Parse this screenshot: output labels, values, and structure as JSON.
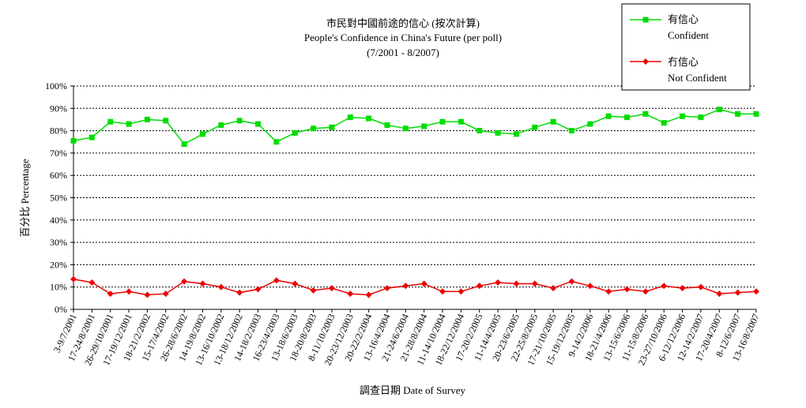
{
  "chart_data": {
    "type": "line",
    "title": "市民對中國前途的信心 (按次計算)",
    "subtitle": "People's Confidence in China's Future (per poll)",
    "subtitle2": "(7/2001 - 8/2007)",
    "xlabel": "調查日期 Date of Survey",
    "ylabel": "百分比 Percentage",
    "ylim": [
      0,
      100
    ],
    "yticks": [
      "0%",
      "10%",
      "20%",
      "30%",
      "40%",
      "50%",
      "60%",
      "70%",
      "80%",
      "90%",
      "100%"
    ],
    "grid": true,
    "legend_position": "top-right",
    "categories": [
      "3-9/7/2001",
      "17-24/8/2001",
      "26-29/10/2001",
      "17-19/12/2001",
      "18-21/2/2002",
      "15-17/4/2002",
      "26-28/6/2002",
      "14-19/8/2002",
      "13-16/10/2002",
      "13-18/12/2002",
      "14-18/2/2003",
      "16-23/4/2003",
      "13-18/6/2003",
      "18-20/8/2003",
      "8-11/10/2003",
      "20-23/12/2003",
      "20-22/2/2004",
      "13-16/4/2004",
      "21-24/6/2004",
      "21-28/8/2004",
      "11-14/10/2004",
      "18-22/12/2004",
      "17-20/2/2005",
      "11-14/4/2005",
      "20-23/6/2005",
      "22-25/8/2005",
      "17-21/10/2005",
      "15-19/12/2005",
      "9-14/2/2006",
      "18-21/4/2006",
      "13-15/6/2006",
      "11-15/8/2006",
      "23-27/10/2006",
      "6-12/12/2006",
      "12-14/2/2007",
      "17-20/4/2007",
      "8-12/6/2007",
      "13-16/8/2007"
    ],
    "series": [
      {
        "name": "有信心",
        "name_en": "Confident",
        "color": "#00dd00",
        "marker": "square",
        "values": [
          75.5,
          77,
          84,
          83,
          85,
          84.5,
          74,
          78.5,
          82.5,
          84.5,
          83,
          75,
          79,
          81,
          81.5,
          86,
          85.5,
          82.5,
          81,
          82,
          84,
          84,
          80,
          79,
          78.5,
          81.5,
          84,
          80,
          83,
          86.5,
          86,
          87.5,
          83.5,
          86.5,
          86,
          89.5,
          87.5,
          87.5
        ]
      },
      {
        "name": "冇信心",
        "name_en": "Not Confident",
        "color": "#ee0000",
        "marker": "diamond",
        "values": [
          13.5,
          12,
          7,
          8,
          6.5,
          7,
          12.5,
          11.5,
          10,
          7.5,
          9,
          13,
          11.5,
          8.5,
          9.5,
          7,
          6.5,
          9.5,
          10.5,
          11.5,
          8,
          8,
          10.5,
          12,
          11.5,
          11.5,
          9.5,
          12.5,
          10.5,
          8,
          9,
          8,
          10.5,
          9.5,
          10,
          7,
          7.5,
          8
        ]
      }
    ]
  }
}
